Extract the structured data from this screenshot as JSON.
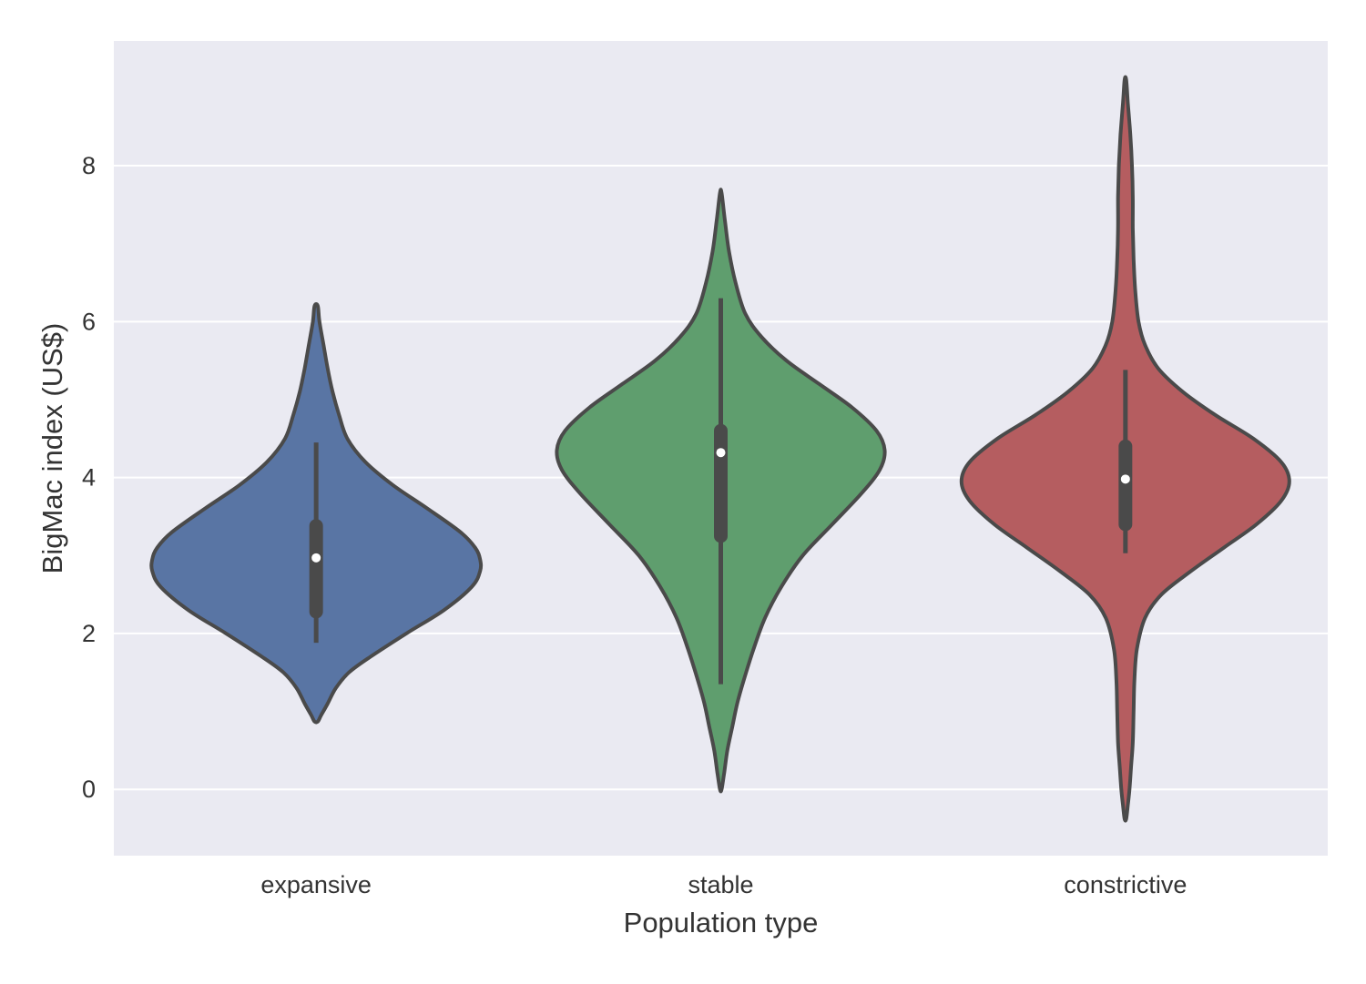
{
  "chart_data": {
    "type": "violin",
    "title": "",
    "xlabel": "Population type",
    "ylabel": "BigMac index (US$)",
    "categories": [
      "expansive",
      "stable",
      "constrictive"
    ],
    "ylim": [
      -0.85,
      9.6
    ],
    "yticks": [
      0,
      2,
      4,
      6,
      8
    ],
    "grid": true,
    "legend": "none",
    "colors": {
      "background": "#EAEAF2",
      "grid": "#FFFFFF",
      "outline": "#4A4A4A",
      "series": [
        "#5975A4",
        "#5F9E6E",
        "#B55D60"
      ],
      "median_dot": "#FFFFFF"
    },
    "violins": [
      {
        "category": "expansive",
        "extent": [
          0.87,
          6.2
        ],
        "profile": [
          [
            0.87,
            0.01
          ],
          [
            0.95,
            0.03
          ],
          [
            1.1,
            0.07
          ],
          [
            1.3,
            0.12
          ],
          [
            1.5,
            0.2
          ],
          [
            1.7,
            0.33
          ],
          [
            2.0,
            0.55
          ],
          [
            2.3,
            0.78
          ],
          [
            2.6,
            0.95
          ],
          [
            2.8,
            1.0
          ],
          [
            2.95,
            1.0
          ],
          [
            3.1,
            0.97
          ],
          [
            3.3,
            0.88
          ],
          [
            3.6,
            0.68
          ],
          [
            3.9,
            0.47
          ],
          [
            4.2,
            0.3
          ],
          [
            4.5,
            0.19
          ],
          [
            4.8,
            0.14
          ],
          [
            5.1,
            0.1
          ],
          [
            5.4,
            0.07
          ],
          [
            5.7,
            0.045
          ],
          [
            6.0,
            0.02
          ],
          [
            6.2,
            0.01
          ]
        ],
        "box": {
          "q1": 2.28,
          "median": 2.97,
          "q3": 3.38,
          "whisker_low": 1.88,
          "whisker_high": 4.45
        }
      },
      {
        "category": "stable",
        "extent": [
          0.0,
          7.65
        ],
        "profile": [
          [
            0.0,
            0.005
          ],
          [
            0.2,
            0.02
          ],
          [
            0.5,
            0.04
          ],
          [
            0.8,
            0.07
          ],
          [
            1.1,
            0.1
          ],
          [
            1.4,
            0.14
          ],
          [
            1.8,
            0.2
          ],
          [
            2.2,
            0.27
          ],
          [
            2.6,
            0.37
          ],
          [
            3.0,
            0.5
          ],
          [
            3.4,
            0.68
          ],
          [
            3.8,
            0.86
          ],
          [
            4.1,
            0.97
          ],
          [
            4.35,
            1.0
          ],
          [
            4.6,
            0.95
          ],
          [
            4.9,
            0.8
          ],
          [
            5.2,
            0.6
          ],
          [
            5.5,
            0.4
          ],
          [
            5.8,
            0.25
          ],
          [
            6.1,
            0.15
          ],
          [
            6.5,
            0.09
          ],
          [
            6.9,
            0.05
          ],
          [
            7.3,
            0.025
          ],
          [
            7.65,
            0.005
          ]
        ],
        "box": {
          "q1": 3.25,
          "median": 4.32,
          "q3": 4.6,
          "whisker_low": 1.35,
          "whisker_high": 6.3
        }
      },
      {
        "category": "constrictive",
        "extent": [
          -0.38,
          9.1
        ],
        "profile": [
          [
            -0.38,
            0.005
          ],
          [
            -0.2,
            0.015
          ],
          [
            0.0,
            0.025
          ],
          [
            0.3,
            0.035
          ],
          [
            0.6,
            0.045
          ],
          [
            1.0,
            0.05
          ],
          [
            1.4,
            0.055
          ],
          [
            1.8,
            0.07
          ],
          [
            2.2,
            0.12
          ],
          [
            2.5,
            0.22
          ],
          [
            2.8,
            0.4
          ],
          [
            3.1,
            0.6
          ],
          [
            3.4,
            0.8
          ],
          [
            3.7,
            0.95
          ],
          [
            3.95,
            1.0
          ],
          [
            4.2,
            0.95
          ],
          [
            4.5,
            0.78
          ],
          [
            4.8,
            0.55
          ],
          [
            5.1,
            0.35
          ],
          [
            5.4,
            0.2
          ],
          [
            5.7,
            0.12
          ],
          [
            6.0,
            0.08
          ],
          [
            6.4,
            0.06
          ],
          [
            6.8,
            0.05
          ],
          [
            7.2,
            0.045
          ],
          [
            7.6,
            0.045
          ],
          [
            8.0,
            0.04
          ],
          [
            8.4,
            0.03
          ],
          [
            8.8,
            0.015
          ],
          [
            9.1,
            0.005
          ]
        ],
        "box": {
          "q1": 3.4,
          "median": 3.98,
          "q3": 4.4,
          "whisker_low": 3.03,
          "whisker_high": 5.38
        }
      }
    ]
  }
}
